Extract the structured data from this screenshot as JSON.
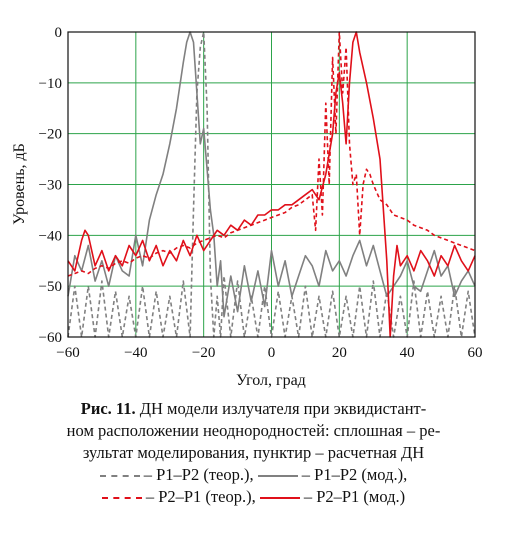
{
  "chart_data": {
    "type": "line",
    "xlabel": "Угол, град",
    "ylabel": "Уровень, дБ",
    "xlim": [
      -60,
      60
    ],
    "ylim": [
      -60,
      0
    ],
    "xticks": [
      "−60",
      "−40",
      "−20",
      "0",
      "20",
      "40",
      "60"
    ],
    "yticks": [
      "0",
      "−10",
      "−20",
      "−30",
      "−40",
      "−50",
      "−60"
    ],
    "grid": true,
    "series": [
      {
        "name": "P1–P2 (теор.)",
        "color": "#808080",
        "style": "dashed",
        "x": [
          -60,
          -58,
          -56,
          -54,
          -52,
          -50,
          -48,
          -46,
          -44,
          -42,
          -40,
          -38,
          -36,
          -34,
          -32,
          -30,
          -28,
          -26,
          -24,
          -23,
          -22,
          -21,
          -20,
          -19,
          -18,
          -17,
          -16,
          -15,
          -14,
          -12,
          -10,
          -8,
          -6,
          -4,
          -2,
          0,
          2,
          4,
          6,
          8,
          10,
          12,
          14,
          16,
          18,
          20,
          22,
          24,
          26,
          28,
          30,
          32,
          34,
          36,
          38,
          40,
          42,
          44,
          46,
          48,
          50,
          52,
          54,
          56,
          58,
          60
        ],
        "y": [
          -60,
          -50,
          -60,
          -50,
          -60,
          -49,
          -60,
          -51,
          -60,
          -52,
          -60,
          -50,
          -60,
          -51,
          -60,
          -52,
          -60,
          -49,
          -60,
          -35,
          -12,
          -3,
          0,
          -15,
          -48,
          -60,
          -52,
          -60,
          -48,
          -60,
          -49,
          -60,
          -52,
          -60,
          -50,
          -60,
          -51,
          -60,
          -52,
          -60,
          -50,
          -60,
          -52,
          -60,
          -51,
          -60,
          -52,
          -60,
          -50,
          -60,
          -49,
          -60,
          -51,
          -60,
          -52,
          -60,
          -49,
          -60,
          -51,
          -60,
          -52,
          -60,
          -50,
          -60,
          -51,
          -60
        ]
      },
      {
        "name": "P1–P2 (мод.)",
        "color": "#808080",
        "style": "solid",
        "x": [
          -60,
          -58,
          -56,
          -54,
          -52,
          -50,
          -48,
          -46,
          -44,
          -42,
          -40,
          -38,
          -36,
          -34,
          -32,
          -30,
          -28,
          -26,
          -25,
          -24,
          -23,
          -22,
          -21,
          -20,
          -19,
          -18,
          -17,
          -16,
          -15,
          -14,
          -12,
          -10,
          -8,
          -6,
          -4,
          -2,
          0,
          2,
          4,
          6,
          8,
          10,
          12,
          14,
          16,
          18,
          20,
          22,
          24,
          26,
          28,
          30,
          32,
          34,
          36,
          38,
          40,
          42,
          44,
          46,
          48,
          50,
          52,
          54,
          56,
          58,
          60
        ],
        "y": [
          -52,
          -44,
          -47,
          -42,
          -49,
          -45,
          -50,
          -44,
          -47,
          -48,
          -40,
          -46,
          -37,
          -32,
          -28,
          -22,
          -15,
          -6,
          -2,
          0,
          -2,
          -12,
          -22,
          -19,
          -27,
          -35,
          -40,
          -50,
          -45,
          -56,
          -48,
          -55,
          -46,
          -53,
          -47,
          -54,
          -43,
          -50,
          -45,
          -52,
          -48,
          -44,
          -46,
          -50,
          -43,
          -47,
          -45,
          -48,
          -44,
          -41,
          -46,
          -42,
          -47,
          -52,
          -50,
          -48,
          -45,
          -50,
          -51,
          -47,
          -43,
          -48,
          -46,
          -52,
          -49,
          -47,
          -50
        ]
      },
      {
        "name": "P2–P1 (теор.)",
        "color": "#e0101a",
        "style": "dashed",
        "x": [
          -60,
          -58,
          -56,
          -54,
          -52,
          -50,
          -48,
          -46,
          -44,
          -42,
          -40,
          -38,
          -36,
          -34,
          -32,
          -30,
          -28,
          -26,
          -24,
          -22,
          -20,
          -18,
          -16,
          -14,
          -12,
          -10,
          -8,
          -6,
          -4,
          -2,
          0,
          2,
          4,
          6,
          8,
          10,
          12,
          13,
          14,
          15,
          16,
          17,
          18,
          19,
          20,
          21,
          22,
          23,
          24,
          25,
          26,
          27,
          28,
          29,
          30,
          32,
          34,
          36,
          38,
          40,
          42,
          44,
          46,
          48,
          50,
          52,
          54,
          56,
          58,
          60
        ],
        "y": [
          -48,
          -47.5,
          -47,
          -47.5,
          -46.5,
          -46,
          -46.5,
          -45.5,
          -45,
          -45.5,
          -44.5,
          -44,
          -44.5,
          -43.5,
          -43,
          -43.5,
          -42.5,
          -42,
          -42.5,
          -41.5,
          -41,
          -40.5,
          -40,
          -40.5,
          -39.5,
          -39,
          -38.5,
          -38,
          -37.5,
          -37,
          -36.5,
          -36,
          -35.5,
          -34.5,
          -34,
          -33,
          -32,
          -39,
          -25,
          -36,
          -14,
          -30,
          -5,
          -20,
          0,
          -12,
          -3,
          -22,
          -30,
          -28,
          -40,
          -30,
          -27,
          -28,
          -30,
          -33,
          -34,
          -36,
          -36.5,
          -37,
          -38,
          -38.5,
          -39,
          -40,
          -40.5,
          -41,
          -41.5,
          -42,
          -42.5,
          -43
        ]
      },
      {
        "name": "P2–P1 (мод.)",
        "color": "#e0101a",
        "style": "solid",
        "x": [
          -60,
          -58,
          -56,
          -55,
          -54,
          -52,
          -50,
          -48,
          -46,
          -44,
          -42,
          -40,
          -38,
          -36,
          -34,
          -32,
          -30,
          -28,
          -26,
          -24,
          -22,
          -20,
          -18,
          -16,
          -14,
          -12,
          -10,
          -8,
          -6,
          -4,
          -2,
          0,
          2,
          4,
          6,
          8,
          10,
          12,
          14,
          16,
          18,
          19,
          20,
          21,
          22,
          23,
          24,
          25,
          26,
          28,
          30,
          32,
          34,
          35,
          36,
          37,
          38,
          40,
          42,
          44,
          46,
          48,
          50,
          52,
          54,
          56,
          58,
          60
        ],
        "y": [
          -45,
          -47,
          -41,
          -39,
          -40,
          -46,
          -43,
          -47,
          -44,
          -46,
          -42,
          -44,
          -41,
          -45,
          -42,
          -46,
          -43,
          -45,
          -41,
          -44,
          -40,
          -43,
          -41,
          -39,
          -40,
          -38,
          -39,
          -37,
          -38,
          -36,
          -36,
          -35,
          -35,
          -34,
          -34,
          -33,
          -32,
          -31,
          -33,
          -28,
          -20,
          -12,
          -8,
          -14,
          -22,
          -10,
          -2,
          0,
          -4,
          -10,
          -17,
          -25,
          -45,
          -60,
          -48,
          -42,
          -46,
          -44,
          -47,
          -43,
          -45,
          -48,
          -44,
          -46,
          -42,
          -45,
          -47,
          -44
        ]
      }
    ]
  },
  "caption": {
    "fig_label": "Рис. 11.",
    "text": " ДН модели излучателя при эквидистант-ном расположении неоднородностей: сплошная – ре-зультат моделирования, пунктир – расчетная ДН",
    "line1": " ДН модели излучателя при эквидистант-",
    "line2": "ном расположении неоднородностей: сплошная – ре-",
    "line3": "зультат моделирования, пунктир – расчетная ДН",
    "legend": [
      {
        "label": "– P1–P2 (теор.),",
        "color": "#808080",
        "style": "dashed"
      },
      {
        "label": "– P1–P2 (мод.),",
        "color": "#808080",
        "style": "solid"
      },
      {
        "label": "– P2–P1 (теор.),",
        "color": "#e0101a",
        "style": "dashed"
      },
      {
        "label": "– P2–P1 (мод.)",
        "color": "#e0101a",
        "style": "solid"
      }
    ]
  }
}
